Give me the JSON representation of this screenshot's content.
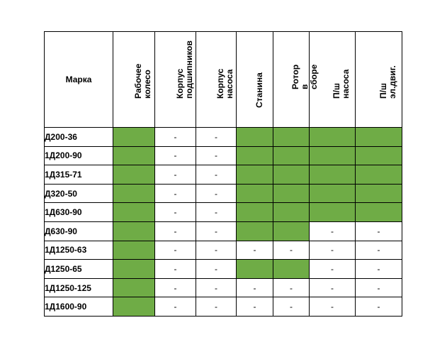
{
  "table": {
    "columns": [
      {
        "label": "Марка"
      },
      {
        "label": "Рабочее колесо"
      },
      {
        "label": "Корпус\nподшипников"
      },
      {
        "label": "Корпус насоса"
      },
      {
        "label": "Станина"
      },
      {
        "label": "Ротор в сборе"
      },
      {
        "label": "П/ш  насоса"
      },
      {
        "label": "П/ш  эл.двиг."
      }
    ],
    "fill_color": "#6fac46",
    "rows": [
      {
        "brand": "Д200-36",
        "cells": [
          "#",
          "-",
          "-",
          "#",
          "#",
          "#",
          "#"
        ]
      },
      {
        "brand": "1Д200-90",
        "cells": [
          "#",
          "-",
          "-",
          "#",
          "#",
          "#",
          "#"
        ]
      },
      {
        "brand": "1Д315-71",
        "cells": [
          "#",
          "-",
          "-",
          "#",
          "#",
          "#",
          "#"
        ]
      },
      {
        "brand": "Д320-50",
        "cells": [
          "#",
          "-",
          "-",
          "#",
          "#",
          "#",
          "#"
        ]
      },
      {
        "brand": "1Д630-90",
        "cells": [
          "#",
          "-",
          "-",
          "#",
          "#",
          "#",
          "#"
        ]
      },
      {
        "brand": "Д630-90",
        "cells": [
          "#",
          "-",
          "-",
          "#",
          "#",
          "-",
          "-"
        ]
      },
      {
        "brand": "1Д1250-63",
        "cells": [
          "#",
          "-",
          "-",
          "-",
          "-",
          "-",
          "-"
        ]
      },
      {
        "brand": "Д1250-65",
        "cells": [
          "#",
          "-",
          "-",
          "#",
          "#",
          "-",
          "-"
        ]
      },
      {
        "brand": "1Д1250-125",
        "cells": [
          "#",
          "-",
          "-",
          "-",
          "-",
          "-",
          "-"
        ]
      },
      {
        "brand": "1Д1600-90",
        "cells": [
          "#",
          "-",
          "-",
          "-",
          "-",
          "-",
          "-"
        ]
      }
    ]
  }
}
